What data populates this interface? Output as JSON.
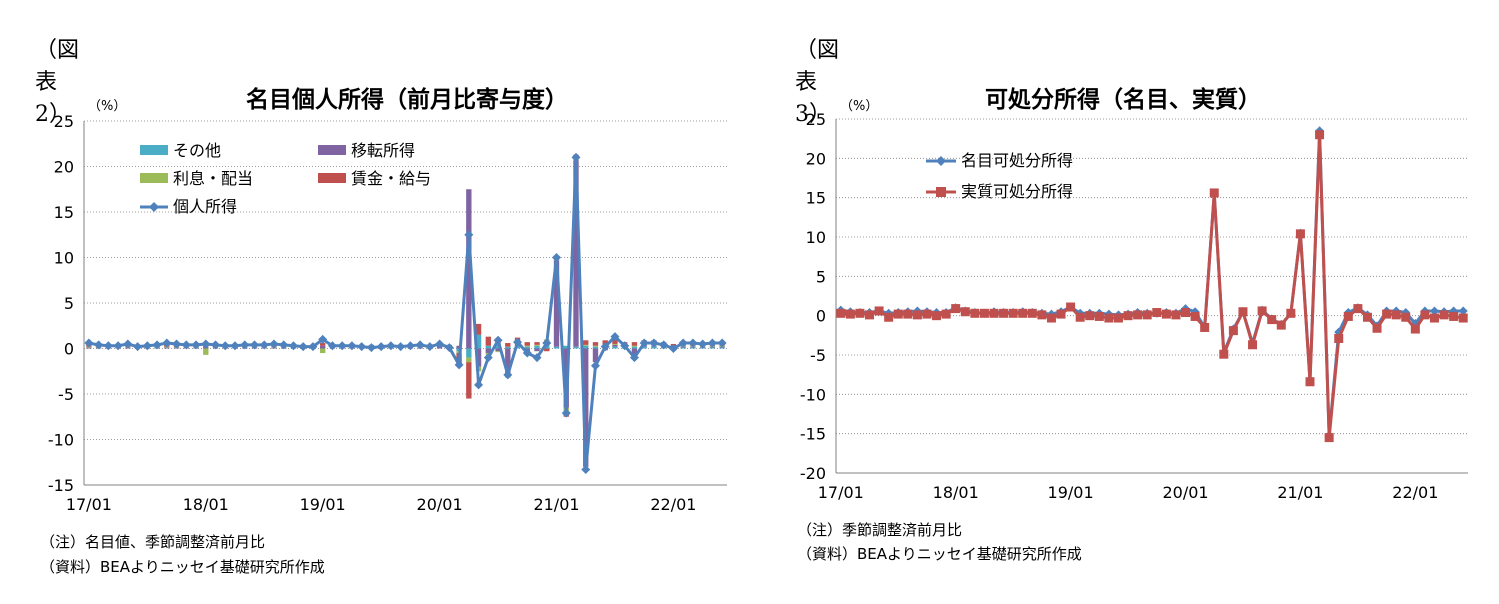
{
  "left": {
    "fig_label": "（図表 2）",
    "unit": "（%）",
    "notes": [
      "（注）名目値、季節調整済前月比",
      "（資料）BEAよりニッセイ基礎研究所作成"
    ]
  },
  "right": {
    "fig_label": "（図表 3）",
    "unit": "（%）",
    "notes": [
      "（注）季節調整済前月比",
      "（資料）BEAよりニッセイ基礎研究所作成"
    ]
  },
  "chart_data": [
    {
      "type": "bar",
      "title": "名目個人所得（前月比寄与度）",
      "x_labels": [
        "17/01",
        "18/01",
        "19/01",
        "20/01",
        "21/01",
        "22/01"
      ],
      "x_months": [
        "17/01",
        "17/02",
        "17/03",
        "17/04",
        "17/05",
        "17/06",
        "17/07",
        "17/08",
        "17/09",
        "17/10",
        "17/11",
        "17/12",
        "18/01",
        "18/02",
        "18/03",
        "18/04",
        "18/05",
        "18/06",
        "18/07",
        "18/08",
        "18/09",
        "18/10",
        "18/11",
        "18/12",
        "19/01",
        "19/02",
        "19/03",
        "19/04",
        "19/05",
        "19/06",
        "19/07",
        "19/08",
        "19/09",
        "19/10",
        "19/11",
        "19/12",
        "20/01",
        "20/02",
        "20/03",
        "20/04",
        "20/05",
        "20/06",
        "20/07",
        "20/08",
        "20/09",
        "20/10",
        "20/11",
        "20/12",
        "21/01",
        "21/02",
        "21/03",
        "21/04",
        "21/05",
        "21/06",
        "21/07",
        "21/08",
        "21/09",
        "21/10",
        "21/11",
        "21/12",
        "22/01",
        "22/02",
        "22/03",
        "22/04",
        "22/05",
        "22/06"
      ],
      "ylim": [
        -15,
        25
      ],
      "yticks": [
        -15,
        -10,
        -5,
        0,
        5,
        10,
        15,
        20,
        25
      ],
      "grid": true,
      "legend": {
        "position": "top-left",
        "columns": 2
      },
      "stacked_series": [
        {
          "name": "その他",
          "color": "#4bacc6",
          "values": [
            0,
            0,
            0,
            0,
            0,
            0,
            0,
            0,
            0,
            0,
            0,
            0,
            0,
            0,
            0,
            0,
            0,
            0,
            0,
            0,
            0,
            0,
            0,
            0,
            0,
            0,
            0,
            0,
            0,
            0,
            0,
            0,
            0,
            0,
            0,
            0,
            0,
            0,
            -0.3,
            -1.0,
            1.5,
            0.3,
            0.6,
            0.2,
            0.3,
            0.2,
            0.3,
            0.4,
            0.2,
            0.3,
            0.2,
            0.3,
            0.2,
            0.3,
            0.2,
            0.2,
            0.2,
            0.2,
            0.2,
            0.2,
            0.1,
            0.1,
            0.1,
            0.1,
            0.1,
            0.1
          ]
        },
        {
          "name": "移転所得",
          "color": "#8064a2",
          "values": [
            0.1,
            0.1,
            0.1,
            0.1,
            0.1,
            0.1,
            0.1,
            0.1,
            0.1,
            0.1,
            0.1,
            0.1,
            0.2,
            0.1,
            0.1,
            0.1,
            0.1,
            0.1,
            0.1,
            0.1,
            0.1,
            0.1,
            0.1,
            0.1,
            0.3,
            0.1,
            0.1,
            0.1,
            0.1,
            0.1,
            0.1,
            0.1,
            0.1,
            0.1,
            0.1,
            0.1,
            0.3,
            0.1,
            0.3,
            17.5,
            -2.0,
            -0.5,
            -0.3,
            -3.0,
            0.3,
            -0.6,
            -0.3,
            0.5,
            9.5,
            -6.5,
            20.5,
            -13.0,
            -1.5,
            -0.2,
            0.2,
            0.0,
            -0.8,
            0.2,
            0.1,
            0.0,
            0.0,
            0.1,
            0.1,
            0.1,
            0.1,
            0.1
          ]
        },
        {
          "name": "利息・配当",
          "color": "#9bbb59",
          "values": [
            0.1,
            0.1,
            0.1,
            0.1,
            0.1,
            0.1,
            0.1,
            0.1,
            0.1,
            0.1,
            0.1,
            0.1,
            -0.7,
            0.1,
            0.1,
            0.1,
            0.1,
            0.1,
            0.1,
            0.1,
            0.1,
            0.1,
            0.1,
            0.1,
            -0.5,
            0.1,
            0.1,
            0.1,
            0.1,
            0.1,
            0.1,
            0.1,
            0.1,
            0.1,
            0.1,
            0.1,
            0.1,
            0.1,
            -0.2,
            -0.5,
            -0.5,
            -0.2,
            -0.1,
            -0.2,
            0.1,
            0.1,
            0.1,
            0.1,
            0.1,
            -0.5,
            0.1,
            0.1,
            0.1,
            0.1,
            0.1,
            0.1,
            0.1,
            0.1,
            0.1,
            0.1,
            0.1,
            0.1,
            0.1,
            0.1,
            0.1,
            0.1
          ]
        },
        {
          "name": "賃金・給与",
          "color": "#c0504d",
          "values": [
            0.3,
            0.2,
            0.2,
            0.2,
            0.3,
            0.2,
            0.2,
            0.3,
            0.2,
            0.2,
            0.2,
            0.2,
            0.2,
            0.2,
            0.2,
            0.2,
            0.2,
            0.2,
            0.2,
            0.2,
            0.2,
            0.2,
            0.2,
            0.2,
            0.3,
            0.2,
            0.2,
            0.2,
            0.2,
            0.2,
            0.2,
            0.2,
            0.2,
            0.2,
            0.2,
            0.2,
            0.3,
            0.2,
            -1.5,
            -4.0,
            1.2,
            1.0,
            0.5,
            0.4,
            0.5,
            0.4,
            0.3,
            -0.3,
            0.4,
            -0.5,
            0.5,
            0.5,
            0.4,
            0.5,
            0.5,
            0.4,
            0.4,
            0.4,
            0.5,
            0.4,
            0.3,
            0.4,
            0.4,
            0.3,
            0.3,
            0.3
          ]
        }
      ],
      "line_series": {
        "name": "個人所得",
        "color": "#4f81bd",
        "values": [
          0.6,
          0.4,
          0.3,
          0.3,
          0.5,
          0.2,
          0.3,
          0.4,
          0.6,
          0.5,
          0.4,
          0.4,
          0.5,
          0.4,
          0.3,
          0.3,
          0.4,
          0.4,
          0.4,
          0.5,
          0.4,
          0.3,
          0.2,
          0.2,
          1.0,
          0.3,
          0.3,
          0.3,
          0.2,
          0.1,
          0.2,
          0.3,
          0.2,
          0.3,
          0.4,
          0.2,
          0.5,
          0.1,
          -1.8,
          12.5,
          -4.0,
          -1.0,
          0.9,
          -2.9,
          0.7,
          -0.5,
          -1.0,
          0.6,
          10.0,
          -7.1,
          21.0,
          -13.3,
          -1.9,
          0.2,
          1.3,
          0.3,
          -1.0,
          0.6,
          0.6,
          0.4,
          0.0,
          0.6,
          0.6,
          0.5,
          0.6,
          0.6
        ]
      }
    },
    {
      "type": "line",
      "title": "可処分所得（名目、実質）",
      "x_labels": [
        "17/01",
        "18/01",
        "19/01",
        "20/01",
        "21/01",
        "22/01"
      ],
      "x_months": [
        "17/01",
        "17/02",
        "17/03",
        "17/04",
        "17/05",
        "17/06",
        "17/07",
        "17/08",
        "17/09",
        "17/10",
        "17/11",
        "17/12",
        "18/01",
        "18/02",
        "18/03",
        "18/04",
        "18/05",
        "18/06",
        "18/07",
        "18/08",
        "18/09",
        "18/10",
        "18/11",
        "18/12",
        "19/01",
        "19/02",
        "19/03",
        "19/04",
        "19/05",
        "19/06",
        "19/07",
        "19/08",
        "19/09",
        "19/10",
        "19/11",
        "19/12",
        "20/01",
        "20/02",
        "20/03",
        "20/04",
        "20/05",
        "20/06",
        "20/07",
        "20/08",
        "20/09",
        "20/10",
        "20/11",
        "20/12",
        "21/01",
        "21/02",
        "21/03",
        "21/04",
        "21/05",
        "21/06",
        "21/07",
        "21/08",
        "21/09",
        "21/10",
        "21/11",
        "21/12",
        "22/01",
        "22/02",
        "22/03",
        "22/04",
        "22/05",
        "22/06"
      ],
      "ylim": [
        -20,
        25
      ],
      "yticks": [
        -20,
        -15,
        -10,
        -5,
        0,
        5,
        10,
        15,
        20,
        25
      ],
      "grid": true,
      "legend": {
        "position": "top-left",
        "columns": 1
      },
      "series": [
        {
          "name": "名目可処分所得",
          "color": "#4f81bd",
          "marker": "diamond",
          "values": [
            0.7,
            0.5,
            0.4,
            0.4,
            0.6,
            0.3,
            0.4,
            0.5,
            0.6,
            0.5,
            0.4,
            0.4,
            1.0,
            0.6,
            0.4,
            0.3,
            0.5,
            0.4,
            0.4,
            0.5,
            0.4,
            0.3,
            0.2,
            0.5,
            1.1,
            0.3,
            0.3,
            0.3,
            0.2,
            0.1,
            0.2,
            0.4,
            0.3,
            0.3,
            0.4,
            0.3,
            0.9,
            0.5,
            -1.5,
            15.5,
            -4.7,
            -1.7,
            0.5,
            -3.5,
            0.7,
            -0.4,
            -1.1,
            0.3,
            10.5,
            -8.2,
            23.5,
            -15.2,
            -2.1,
            0.4,
            1.0,
            0.1,
            -1.3,
            0.6,
            0.6,
            0.4,
            -1.0,
            0.6,
            0.6,
            0.5,
            0.6,
            0.6
          ]
        },
        {
          "name": "実質可処分所得",
          "color": "#c0504d",
          "marker": "square",
          "values": [
            0.3,
            0.2,
            0.3,
            0.1,
            0.6,
            -0.2,
            0.2,
            0.2,
            0.1,
            0.2,
            0.0,
            0.2,
            0.9,
            0.5,
            0.3,
            0.3,
            0.3,
            0.3,
            0.3,
            0.3,
            0.3,
            0.1,
            -0.3,
            0.2,
            1.1,
            -0.2,
            0.0,
            -0.1,
            -0.3,
            -0.3,
            0.0,
            0.1,
            0.1,
            0.4,
            0.2,
            0.1,
            0.4,
            -0.1,
            -1.5,
            15.6,
            -4.9,
            -1.9,
            0.5,
            -3.7,
            0.6,
            -0.5,
            -1.2,
            0.3,
            10.4,
            -8.4,
            23.0,
            -15.5,
            -2.9,
            -0.1,
            0.9,
            -0.2,
            -1.6,
            0.2,
            0.1,
            -0.2,
            -1.7,
            0.1,
            -0.3,
            0.1,
            -0.1,
            -0.3
          ]
        }
      ]
    }
  ]
}
